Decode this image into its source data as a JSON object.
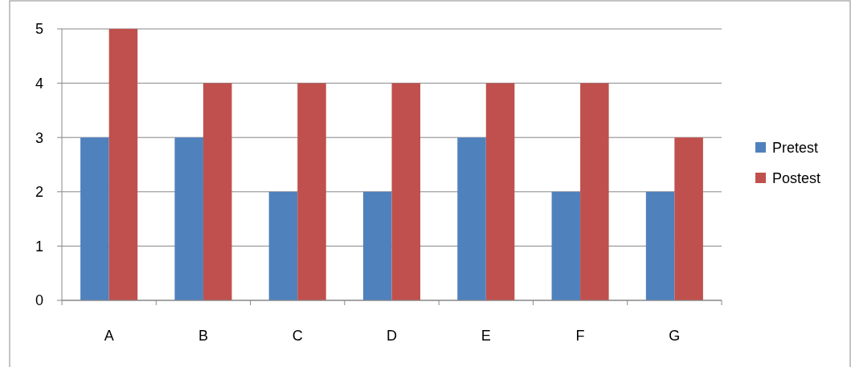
{
  "chart_data": {
    "type": "bar",
    "categories": [
      "A",
      "B",
      "C",
      "D",
      "E",
      "F",
      "G"
    ],
    "series": [
      {
        "name": "Pretest",
        "color": "#4f81bd",
        "values": [
          3,
          3,
          2,
          2,
          3,
          2,
          2
        ]
      },
      {
        "name": "Postest",
        "color": "#c0504d",
        "values": [
          5,
          4,
          4,
          4,
          4,
          4,
          3
        ]
      }
    ],
    "ylim": [
      0,
      5
    ],
    "yticks": [
      0,
      1,
      2,
      3,
      4,
      5
    ],
    "grid": "y",
    "legend": "right"
  }
}
